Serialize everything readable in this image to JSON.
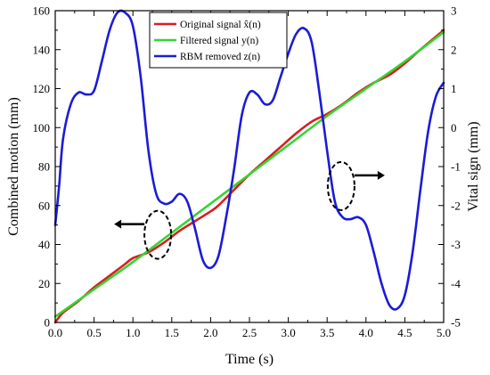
{
  "chart_data": {
    "type": "line",
    "title": "",
    "xlabel": "Time (s)",
    "ylabel_left": "Combined motion (mm)",
    "ylabel_right": "Vital sign (mm)",
    "xlim": [
      0,
      5
    ],
    "ylim_left": [
      0,
      160
    ],
    "ylim_right": [
      -5,
      3
    ],
    "x_ticks": [
      "0.0",
      "0.5",
      "1.0",
      "1.5",
      "2.0",
      "2.5",
      "3.0",
      "3.5",
      "4.0",
      "4.5",
      "5.0"
    ],
    "y_ticks_left": [
      "0",
      "20",
      "40",
      "60",
      "80",
      "100",
      "120",
      "140",
      "160"
    ],
    "y_ticks_right": [
      "-5",
      "-4",
      "-3",
      "-2",
      "-1",
      "0",
      "1",
      "2",
      "3"
    ],
    "grid": false,
    "legend_position": "top-center",
    "series": [
      {
        "name": "Original signal x̂(n)",
        "axis": "left",
        "color": "#d81e1e",
        "x": [
          0.0,
          0.1,
          0.3,
          0.5,
          0.7,
          0.9,
          1.0,
          1.2,
          1.4,
          1.6,
          1.8,
          2.0,
          2.1,
          2.3,
          2.5,
          2.7,
          2.9,
          3.1,
          3.3,
          3.5,
          3.7,
          3.9,
          4.1,
          4.3,
          4.5,
          4.7,
          5.0
        ],
        "y": [
          0,
          5,
          11,
          18,
          24,
          30,
          33,
          36,
          41,
          47,
          52,
          57,
          60,
          68,
          76,
          83,
          90,
          97,
          103,
          107,
          112,
          118,
          123,
          127,
          133,
          140,
          150
        ]
      },
      {
        "name": "Filtered signal y(n)",
        "axis": "left",
        "color": "#33d633",
        "x": [
          0.0,
          0.5,
          1.0,
          1.5,
          2.0,
          2.5,
          3.0,
          3.5,
          4.0,
          4.5,
          5.0
        ],
        "y": [
          3,
          17,
          31,
          46,
          61,
          76,
          91,
          106,
          120,
          134,
          149
        ]
      },
      {
        "name": "RBM removed z(n)",
        "axis": "right",
        "color": "#1b1bd8",
        "x": [
          0.0,
          0.05,
          0.1,
          0.2,
          0.3,
          0.4,
          0.5,
          0.6,
          0.7,
          0.8,
          0.9,
          1.0,
          1.1,
          1.2,
          1.3,
          1.4,
          1.5,
          1.6,
          1.7,
          1.8,
          1.9,
          2.0,
          2.1,
          2.2,
          2.3,
          2.4,
          2.5,
          2.6,
          2.7,
          2.8,
          2.9,
          3.0,
          3.1,
          3.2,
          3.3,
          3.4,
          3.5,
          3.6,
          3.7,
          3.8,
          3.9,
          4.0,
          4.1,
          4.2,
          4.3,
          4.4,
          4.5,
          4.6,
          4.7,
          4.8,
          4.9,
          5.0
        ],
        "y": [
          -2.5,
          -1.5,
          -0.3,
          0.6,
          0.9,
          0.85,
          0.95,
          1.7,
          2.5,
          2.95,
          2.95,
          2.6,
          1.3,
          -0.6,
          -1.7,
          -1.95,
          -1.9,
          -1.7,
          -1.9,
          -2.6,
          -3.4,
          -3.6,
          -3.3,
          -2.3,
          -1.1,
          0.3,
          0.9,
          0.85,
          0.6,
          0.7,
          1.3,
          1.9,
          2.4,
          2.55,
          2.2,
          0.9,
          -0.6,
          -1.9,
          -2.3,
          -2.35,
          -2.3,
          -2.5,
          -3.2,
          -4.0,
          -4.55,
          -4.65,
          -4.3,
          -3.2,
          -1.6,
          -0.1,
          0.8,
          1.15
        ]
      }
    ],
    "annotations": [
      {
        "type": "dashed-ellipse",
        "x": 1.32,
        "y": 45,
        "axis": "left",
        "arrow": "left"
      },
      {
        "type": "dashed-ellipse",
        "x": 3.68,
        "y": -1.5,
        "axis": "right",
        "arrow": "right"
      }
    ]
  }
}
